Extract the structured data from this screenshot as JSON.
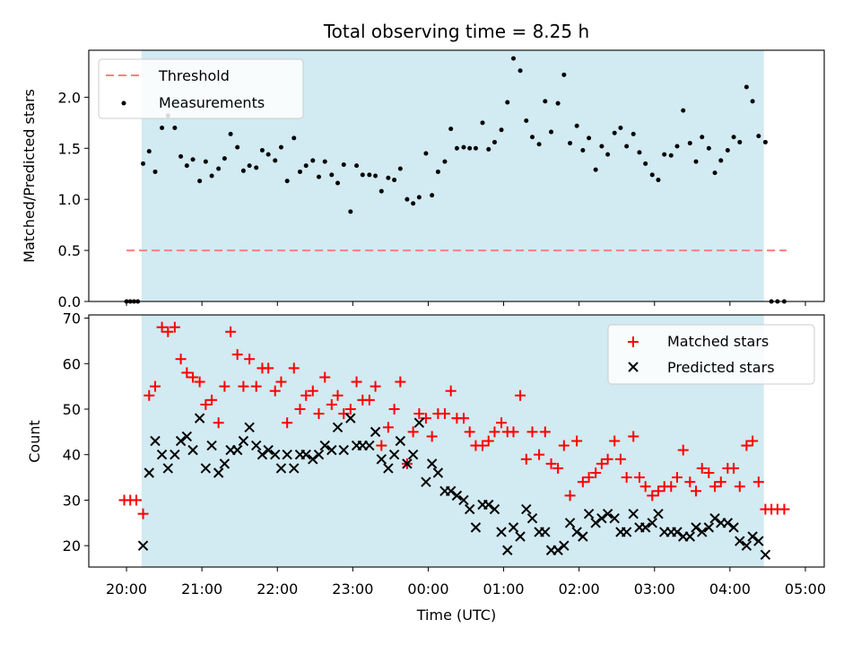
{
  "chart_data": [
    {
      "type": "scatter",
      "title": "Total observing time = 8.25 h",
      "xlabel": "",
      "ylabel": "Matched/Predicted stars",
      "x_range_hours": [
        19.5,
        29.25
      ],
      "ylim": [
        0,
        2.46
      ],
      "yticks": [
        0.0,
        0.5,
        1.0,
        1.5,
        2.0
      ],
      "ytick_labels": [
        "0.0",
        "0.5",
        "1.0",
        "1.5",
        "2.0"
      ],
      "threshold": {
        "name": "Threshold",
        "value": 0.5,
        "x_start": 20.0,
        "x_end": 28.75,
        "color": "#ff7f7f"
      },
      "observing_window": {
        "start": "20:12",
        "end": "04:27",
        "color": "#add8e6"
      },
      "legend": {
        "placement": "top-left",
        "entries": [
          "Threshold",
          "Measurements"
        ]
      },
      "series": [
        {
          "name": "Measurements",
          "color": "#000000",
          "x": [
            20.0,
            20.05,
            20.1,
            20.15,
            20.22,
            20.3,
            20.38,
            20.47,
            20.55,
            20.64,
            20.72,
            20.8,
            20.88,
            20.97,
            21.05,
            21.13,
            21.22,
            21.3,
            21.38,
            21.47,
            21.55,
            21.63,
            21.72,
            21.8,
            21.88,
            21.97,
            22.05,
            22.13,
            22.22,
            22.3,
            22.38,
            22.47,
            22.55,
            22.63,
            22.72,
            22.8,
            22.88,
            22.97,
            23.05,
            23.13,
            23.22,
            23.3,
            23.38,
            23.47,
            23.55,
            23.63,
            23.72,
            23.8,
            23.88,
            23.97,
            24.05,
            24.13,
            24.22,
            24.3,
            24.38,
            24.47,
            24.55,
            24.63,
            24.72,
            24.8,
            24.88,
            24.97,
            25.05,
            25.13,
            25.22,
            25.3,
            25.38,
            25.47,
            25.55,
            25.63,
            25.72,
            25.8,
            25.88,
            25.97,
            26.05,
            26.13,
            26.22,
            26.3,
            26.38,
            26.47,
            26.55,
            26.63,
            26.72,
            26.8,
            26.88,
            26.97,
            27.05,
            27.13,
            27.22,
            27.3,
            27.38,
            27.47,
            27.55,
            27.63,
            27.72,
            27.8,
            27.88,
            27.97,
            28.05,
            28.13,
            28.22,
            28.3,
            28.38,
            28.47,
            28.55,
            28.63,
            28.72
          ],
          "y": [
            0.0,
            0.0,
            0.0,
            0.0,
            1.35,
            1.47,
            1.27,
            1.7,
            1.82,
            1.7,
            1.42,
            1.33,
            1.39,
            1.18,
            1.37,
            1.23,
            1.3,
            1.4,
            1.64,
            1.51,
            1.28,
            1.33,
            1.31,
            1.48,
            1.44,
            1.38,
            1.51,
            1.18,
            1.6,
            1.27,
            1.33,
            1.38,
            1.22,
            1.37,
            1.24,
            1.16,
            1.34,
            0.88,
            1.33,
            1.24,
            1.24,
            1.23,
            1.08,
            1.21,
            1.19,
            1.3,
            1.0,
            0.96,
            1.02,
            1.45,
            1.04,
            1.27,
            1.37,
            1.69,
            1.5,
            1.51,
            1.5,
            1.5,
            1.75,
            1.49,
            1.56,
            1.68,
            1.95,
            2.38,
            2.26,
            1.77,
            1.61,
            1.54,
            1.96,
            1.66,
            1.94,
            2.22,
            1.55,
            1.72,
            1.48,
            1.6,
            1.29,
            1.52,
            1.44,
            1.65,
            1.7,
            1.52,
            1.64,
            1.46,
            1.35,
            1.24,
            1.19,
            1.44,
            1.43,
            1.52,
            1.87,
            1.55,
            1.37,
            1.61,
            1.5,
            1.26,
            1.38,
            1.48,
            1.61,
            1.56,
            2.1,
            1.96,
            1.62,
            1.56,
            0.0,
            0.0,
            0.0
          ]
        }
      ]
    },
    {
      "type": "scatter",
      "title": "",
      "xlabel": "Time (UTC)",
      "ylabel": "Count",
      "x_range_hours": [
        19.5,
        29.25
      ],
      "ylim": [
        15.3,
        70.7
      ],
      "yticks": [
        20,
        30,
        40,
        50,
        60,
        70
      ],
      "ytick_labels": [
        "20",
        "30",
        "40",
        "50",
        "60",
        "70"
      ],
      "xtick_hours": [
        20,
        21,
        22,
        23,
        24,
        25,
        26,
        27,
        28,
        29
      ],
      "xtick_labels": [
        "20:00",
        "21:00",
        "22:00",
        "23:00",
        "00:00",
        "01:00",
        "02:00",
        "03:00",
        "04:00",
        "05:00"
      ],
      "observing_window": {
        "start": "20:12",
        "end": "04:27",
        "color": "#add8e6"
      },
      "legend": {
        "placement": "top-right",
        "entries": [
          "Matched stars",
          "Predicted stars"
        ]
      },
      "series": [
        {
          "name": "Matched stars",
          "marker": "plus",
          "color": "#ff0000",
          "x": [
            19.97,
            20.05,
            20.13,
            20.22,
            20.3,
            20.38,
            20.47,
            20.55,
            20.64,
            20.72,
            20.8,
            20.88,
            20.97,
            21.05,
            21.13,
            21.22,
            21.3,
            21.38,
            21.47,
            21.55,
            21.63,
            21.72,
            21.8,
            21.88,
            21.97,
            22.05,
            22.13,
            22.22,
            22.3,
            22.38,
            22.47,
            22.55,
            22.63,
            22.72,
            22.8,
            22.88,
            22.97,
            23.05,
            23.13,
            23.22,
            23.3,
            23.38,
            23.47,
            23.55,
            23.63,
            23.72,
            23.8,
            23.88,
            23.97,
            24.05,
            24.13,
            24.22,
            24.3,
            24.38,
            24.47,
            24.55,
            24.63,
            24.72,
            24.8,
            24.88,
            24.97,
            25.05,
            25.13,
            25.22,
            25.3,
            25.38,
            25.47,
            25.55,
            25.63,
            25.72,
            25.8,
            25.88,
            25.97,
            26.05,
            26.13,
            26.22,
            26.3,
            26.38,
            26.47,
            26.55,
            26.63,
            26.72,
            26.8,
            26.88,
            26.97,
            27.05,
            27.13,
            27.22,
            27.3,
            27.38,
            27.47,
            27.55,
            27.63,
            27.72,
            27.8,
            27.88,
            27.97,
            28.05,
            28.13,
            28.22,
            28.3,
            28.38,
            28.47,
            28.55,
            28.63,
            28.72
          ],
          "y": [
            30,
            30,
            30,
            27,
            53,
            55,
            68,
            67,
            68,
            61,
            58,
            57,
            56,
            51,
            52,
            47,
            55,
            67,
            62,
            55,
            61,
            55,
            59,
            59,
            54,
            56,
            47,
            59,
            50,
            53,
            54,
            49,
            57,
            51,
            53,
            49,
            50,
            56,
            52,
            52,
            55,
            42,
            46,
            50,
            56,
            38,
            45,
            49,
            48,
            44,
            49,
            49,
            54,
            48,
            48,
            45,
            42,
            42,
            43,
            45,
            47,
            45,
            45,
            53,
            39,
            45,
            40,
            45,
            38,
            37,
            42,
            31,
            43,
            34,
            35,
            36,
            38,
            39,
            43,
            39,
            35,
            44,
            35,
            33,
            31,
            32,
            33,
            33,
            35,
            41,
            34,
            32,
            37,
            36,
            33,
            34,
            37,
            37,
            33,
            42,
            43,
            34,
            28,
            28,
            28,
            28
          ]
        },
        {
          "name": "Predicted stars",
          "marker": "x",
          "color": "#000000",
          "x": [
            20.22,
            20.3,
            20.38,
            20.47,
            20.55,
            20.64,
            20.72,
            20.8,
            20.88,
            20.97,
            21.05,
            21.13,
            21.22,
            21.3,
            21.38,
            21.47,
            21.55,
            21.63,
            21.72,
            21.8,
            21.88,
            21.97,
            22.05,
            22.13,
            22.22,
            22.3,
            22.38,
            22.47,
            22.55,
            22.63,
            22.72,
            22.8,
            22.88,
            22.97,
            23.05,
            23.13,
            23.22,
            23.3,
            23.38,
            23.47,
            23.55,
            23.63,
            23.72,
            23.8,
            23.88,
            23.97,
            24.05,
            24.13,
            24.22,
            24.3,
            24.38,
            24.47,
            24.55,
            24.63,
            24.72,
            24.8,
            24.88,
            24.97,
            25.05,
            25.13,
            25.22,
            25.3,
            25.38,
            25.47,
            25.55,
            25.63,
            25.72,
            25.8,
            25.88,
            25.97,
            26.05,
            26.13,
            26.22,
            26.3,
            26.38,
            26.47,
            26.55,
            26.63,
            26.72,
            26.8,
            26.88,
            26.97,
            27.05,
            27.13,
            27.22,
            27.3,
            27.38,
            27.47,
            27.55,
            27.63,
            27.72,
            27.8,
            27.88,
            27.97,
            28.05,
            28.13,
            28.22,
            28.3,
            28.38,
            28.47
          ],
          "y": [
            20,
            36,
            43,
            40,
            37,
            40,
            43,
            44,
            41,
            48,
            37,
            42,
            36,
            38,
            41,
            41,
            43,
            46,
            42,
            40,
            41,
            40,
            37,
            40,
            37,
            40,
            40,
            39,
            40,
            42,
            41,
            46,
            41,
            48,
            42,
            42,
            42,
            45,
            39,
            37,
            40,
            43,
            38,
            40,
            47,
            34,
            38,
            36,
            32,
            32,
            31,
            30,
            28,
            24,
            29,
            29,
            28,
            23,
            19,
            24,
            22,
            28,
            26,
            23,
            23,
            19,
            19,
            20,
            25,
            23,
            22,
            27,
            25,
            26,
            27,
            26,
            23,
            23,
            27,
            24,
            24,
            25,
            27,
            23,
            23,
            23,
            22,
            22,
            24,
            23,
            24,
            26,
            25,
            25,
            24,
            21,
            20,
            22,
            21,
            18
          ]
        }
      ]
    }
  ]
}
